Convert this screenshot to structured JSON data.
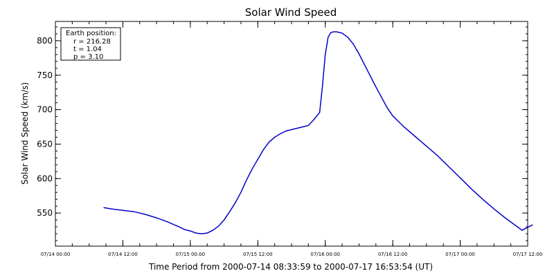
{
  "chart_data": {
    "type": "line",
    "title": "Solar Wind Speed",
    "ylabel": "Solar Wind Speed (km/s)",
    "xlabel": "Time Period from 2000-07-14 08:33:59 to 2000-07-17 16:53:54 (UT)",
    "x_range_hours_from_0714_0000": [
      0,
      84
    ],
    "ylim": [
      502,
      828
    ],
    "y_ticks": [
      550,
      600,
      650,
      700,
      750,
      800
    ],
    "x_tick_labels": [
      "07/14 00:00",
      "07/14 12:00",
      "07/15 00:00",
      "07/15 12:00",
      "07/16 00:00",
      "07/16 12:00",
      "07/17 00:00",
      "07/17 12:00"
    ],
    "annotation": {
      "title": "Earth position:",
      "lines": [
        "r = 216.28",
        "t = 1.04",
        "p = 3.10"
      ]
    },
    "series": [
      {
        "color": "#0000cc",
        "x": [
          8.57,
          10,
          12,
          14,
          16,
          18,
          20,
          22,
          23,
          24,
          25,
          26,
          27,
          28,
          29,
          30,
          31,
          32,
          33,
          34,
          35,
          36,
          37,
          38,
          39,
          40,
          41,
          42,
          43,
          44,
          45,
          46,
          47,
          47.5,
          48,
          48.5,
          49,
          49.5,
          50,
          51,
          52,
          53,
          54,
          55,
          56,
          57,
          58,
          59,
          60,
          62,
          64,
          66,
          68,
          70,
          72,
          74,
          76,
          78,
          80,
          82,
          83,
          84.9
        ],
        "values": [
          558,
          556,
          554,
          552,
          548,
          543,
          537,
          530,
          526,
          524,
          521,
          520,
          521,
          525,
          531,
          540,
          552,
          565,
          580,
          598,
          614,
          628,
          642,
          653,
          660,
          665,
          669,
          671,
          673,
          675,
          677,
          686,
          696,
          735,
          780,
          805,
          812,
          813,
          813,
          811,
          805,
          795,
          781,
          765,
          749,
          733,
          718,
          703,
          691,
          675,
          661,
          647,
          633,
          617,
          601,
          585,
          570,
          556,
          543,
          531,
          525,
          533
        ]
      }
    ]
  }
}
